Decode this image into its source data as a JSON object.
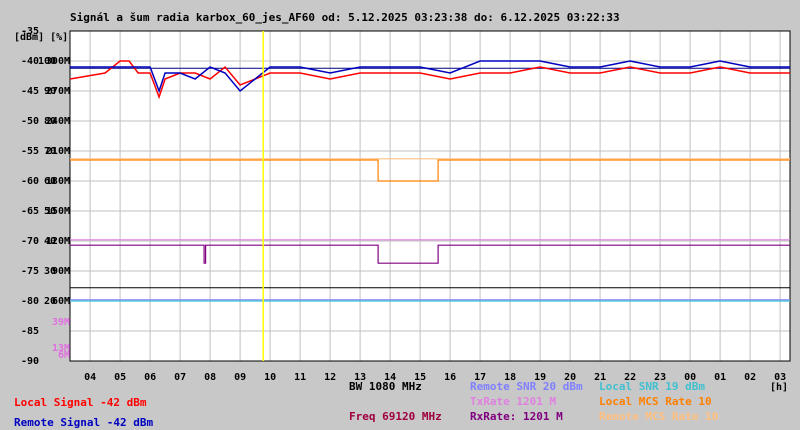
{
  "chart_data": {
    "type": "line",
    "title": "Signál a šum radia karbox_60_jes_AF60 od: 5.12.2025 03:23:38 do: 6.12.2025 03:22:33",
    "y_axis_label": "[dBm] [%]",
    "x_axis_label": "[h]",
    "xlim": [
      3.33,
      27.33
    ],
    "xticks": [
      {
        "value": 4,
        "label": "04"
      },
      {
        "value": 5,
        "label": "05"
      },
      {
        "value": 6,
        "label": "06"
      },
      {
        "value": 7,
        "label": "07"
      },
      {
        "value": 8,
        "label": "08"
      },
      {
        "value": 9,
        "label": "09"
      },
      10,
      11,
      12,
      13,
      14,
      15,
      16,
      17,
      18,
      19,
      20,
      21,
      22,
      23,
      {
        "value": 24,
        "label": "00"
      },
      {
        "value": 25,
        "label": "01"
      },
      {
        "value": 26,
        "label": "02"
      },
      {
        "value": 27,
        "label": "03"
      }
    ],
    "ylim": [
      -90,
      -35
    ],
    "yticks": [
      -90,
      -85,
      -80,
      -75,
      -70,
      -65,
      -60,
      -55,
      -50,
      -45,
      -40,
      -35
    ],
    "y2lim": [
      0,
      110
    ],
    "y2ticks": [
      20,
      30,
      40,
      50,
      60,
      70,
      80,
      90,
      100
    ],
    "y3lim": [
      0,
      330
    ],
    "y3ticks": [
      {
        "value": 60,
        "label": "60M"
      },
      {
        "value": 90,
        "label": "90M"
      },
      {
        "value": 120,
        "label": "120M"
      },
      {
        "value": 150,
        "label": "150M"
      },
      {
        "value": 180,
        "label": "180M"
      },
      {
        "value": 210,
        "label": "210M"
      },
      {
        "value": 240,
        "label": "240M"
      },
      {
        "value": 270,
        "label": "270M"
      },
      {
        "value": 300,
        "label": "300M"
      }
    ],
    "y3ticks_extra": [
      {
        "value": 39,
        "label": "39M"
      },
      {
        "value": 13,
        "label": "13M"
      },
      {
        "value": 6,
        "label": "6M"
      }
    ],
    "y3ticks_extra_color": "#e070e0",
    "grid": true,
    "markers": [
      {
        "x": 9.77,
        "color": "#ffff00"
      }
    ],
    "reference_lines": [
      {
        "value": -41.2,
        "color": "#000080"
      },
      {
        "value": -77.8,
        "color": "#000000"
      }
    ],
    "info": [
      "BW 1080 MHz",
      "Freq 69120 MHz"
    ],
    "info_colors": [
      "#000000",
      "#a00040"
    ],
    "series": [
      {
        "name": "Local Signal -42 dBm",
        "color": "#ff0000",
        "x": [
          3.33,
          4.5,
          5.0,
          5.3,
          5.6,
          6.0,
          6.3,
          6.5,
          7.0,
          7.5,
          8.0,
          8.5,
          9.0,
          10,
          11,
          12,
          13,
          14,
          15,
          16,
          17,
          18,
          19,
          20,
          21,
          22,
          23,
          24,
          25,
          26,
          27.33
        ],
        "values": [
          -43,
          -42,
          -40,
          -40,
          -42,
          -42,
          -46,
          -43,
          -42,
          -42,
          -43,
          -41,
          -44,
          -42,
          -42,
          -43,
          -42,
          -42,
          -42,
          -43,
          -42,
          -42,
          -41,
          -42,
          -42,
          -41,
          -42,
          -42,
          -41,
          -42,
          -42
        ]
      },
      {
        "name": "Remote Signal -42 dBm",
        "color": "#0000c0",
        "x": [
          3.33,
          4.5,
          5.0,
          5.3,
          5.6,
          6.0,
          6.3,
          6.5,
          7.0,
          7.5,
          8.0,
          8.5,
          9.0,
          10,
          11,
          12,
          13,
          14,
          15,
          16,
          17,
          18,
          19,
          20,
          21,
          22,
          23,
          24,
          25,
          26,
          27.33
        ],
        "values": [
          -41,
          -41,
          -41,
          -41,
          -41,
          -41,
          -45,
          -42,
          -42,
          -43,
          -41,
          -42,
          -45,
          -41,
          -41,
          -42,
          -41,
          -41,
          -41,
          -42,
          -40,
          -40,
          -40,
          -41,
          -41,
          -40,
          -41,
          -41,
          -40,
          -41,
          -41
        ]
      },
      {
        "name": "Remote SNR 20 dBm",
        "color": "#8080ff",
        "x": [
          3.33,
          8,
          14,
          20,
          27.33
        ],
        "values": [
          -79.8,
          -79.8,
          -79.8,
          -79.8,
          -79.8
        ]
      },
      {
        "name": "TxRate 1201 M",
        "color": "#e080e0",
        "x": [
          3.33,
          27.33
        ],
        "values": [
          -69.8,
          -69.8
        ]
      },
      {
        "name": "RxRate: 1201 M",
        "color": "#800080",
        "x": [
          3.33,
          7.8,
          7.8,
          7.85,
          7.85,
          13.6,
          13.6,
          15.6,
          15.6,
          27.33
        ],
        "values": [
          -70.7,
          -70.7,
          -73.7,
          -73.7,
          -70.7,
          -70.7,
          -73.7,
          -73.7,
          -70.7,
          -70.7
        ]
      },
      {
        "name": "Local SNR 19 dBm",
        "color": "#40c0d0",
        "x": [
          3.33,
          8,
          14,
          20,
          27.33
        ],
        "values": [
          -80,
          -80,
          -80,
          -80,
          -80
        ]
      },
      {
        "name": "Local MCS Rate 10",
        "color": "#ff8000",
        "x": [
          3.33,
          13.6,
          13.6,
          15.6,
          15.6,
          27.33
        ],
        "values": [
          -56.5,
          -56.5,
          -60,
          -60,
          -56.5,
          -56.5
        ]
      },
      {
        "name": "Remote MCS Rate 10",
        "color": "#ffc080",
        "x": [
          3.33,
          27.33
        ],
        "values": [
          -56.3,
          -56.3
        ]
      }
    ]
  }
}
